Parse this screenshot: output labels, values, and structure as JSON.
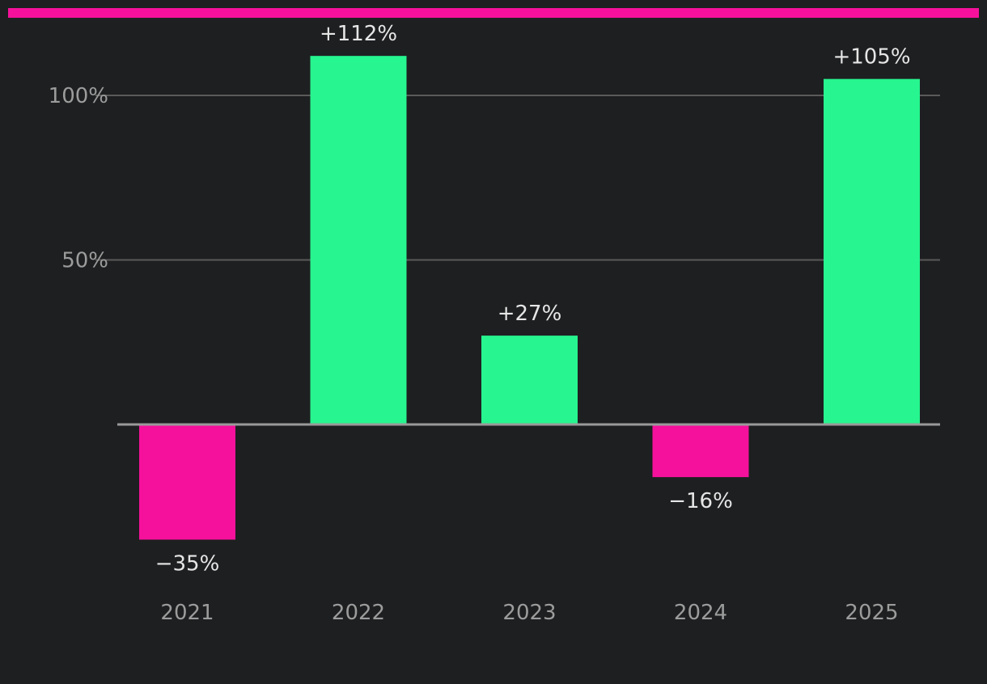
{
  "colors": {
    "background": "#1e1f21",
    "accent_bar": "#f5119b",
    "positive": "#27f58f",
    "negative": "#f5119b"
  },
  "chart_data": {
    "type": "bar",
    "categories": [
      "2021",
      "2022",
      "2023",
      "2024",
      "2025"
    ],
    "values": [
      -35,
      112,
      27,
      -16,
      105
    ],
    "data_labels": [
      "−35%",
      "+112%",
      "+27%",
      "−16%",
      "+105%"
    ],
    "y_ticks": [
      {
        "value": 50,
        "label": "50%"
      },
      {
        "value": 100,
        "label": "100%"
      }
    ],
    "ylim": [
      -50,
      120
    ],
    "grid": true,
    "legend": "none",
    "title": "",
    "xlabel": "",
    "ylabel": ""
  }
}
